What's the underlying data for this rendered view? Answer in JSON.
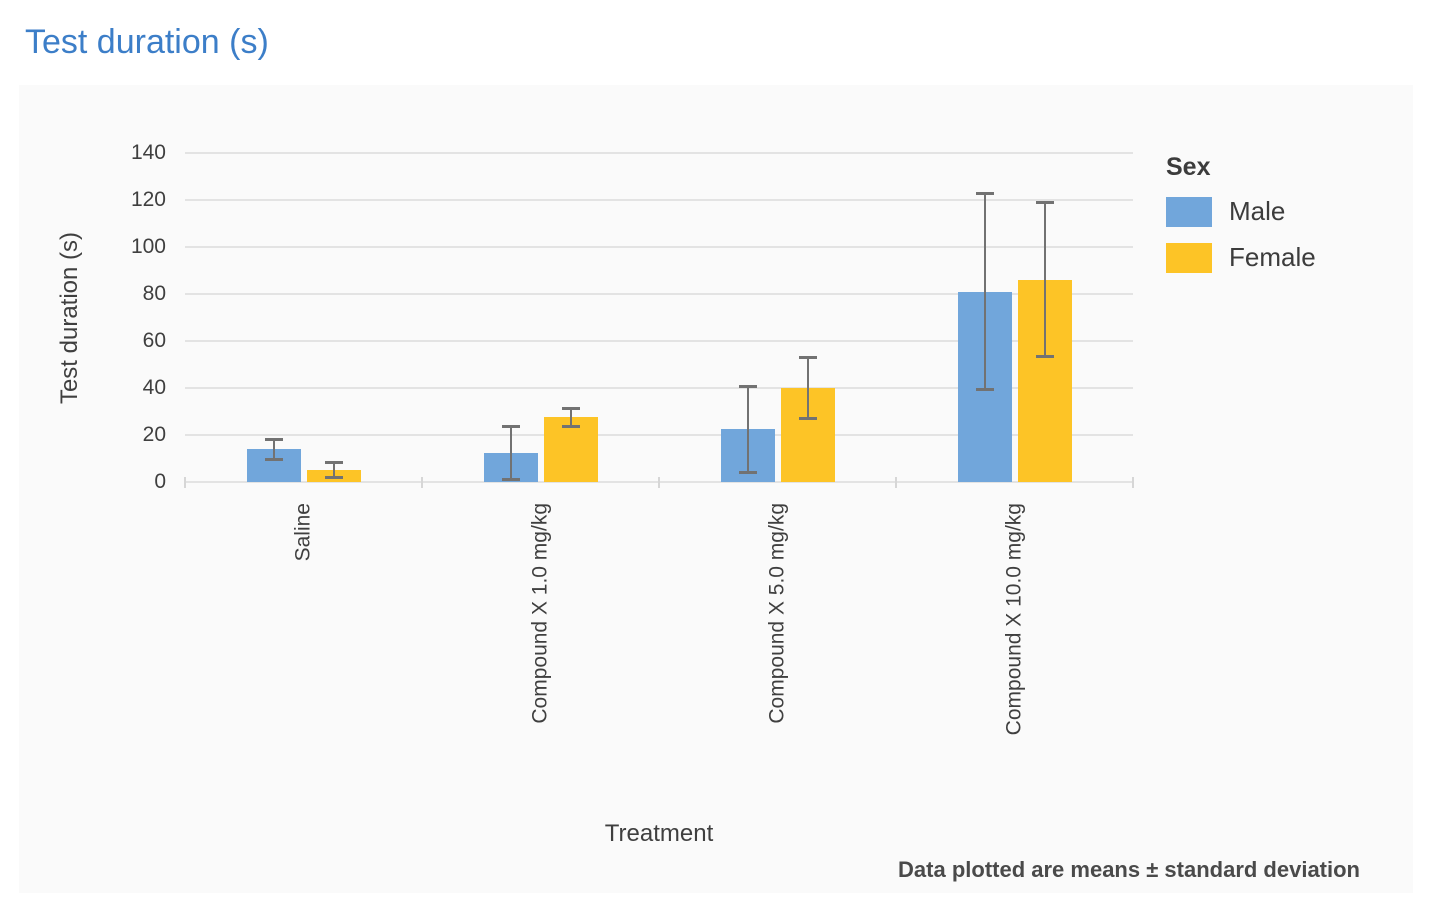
{
  "page": {
    "title": "Test duration (s)"
  },
  "chart_data": {
    "type": "bar",
    "title": "Test duration (s)",
    "xlabel": "Treatment",
    "ylabel": "Test duration (s)",
    "legend_title": "Sex",
    "legend_position": "right",
    "footnote": "Data plotted are means ± standard deviation",
    "categories": [
      "Saline",
      "Compound X 1.0 mg/kg",
      "Compound X 5.0 mg/kg",
      "Compound X 10.0 mg/kg"
    ],
    "series": [
      {
        "name": "Male",
        "color": "#71A6DB",
        "means": [
          14,
          12.5,
          22.5,
          81
        ],
        "sds": [
          4.5,
          11.5,
          18.5,
          42
        ]
      },
      {
        "name": "Female",
        "color": "#FDC426",
        "means": [
          5,
          27.5,
          40,
          86
        ],
        "sds": [
          3.5,
          4,
          13,
          33
        ]
      }
    ],
    "error_bars": "standard deviation",
    "ylim": [
      0,
      140
    ],
    "yticks": [
      0,
      20,
      40,
      60,
      80,
      100,
      120,
      140
    ],
    "grid": "horizontal"
  },
  "colors": {
    "title_text": "#3C7EC8",
    "panel_background": "#FAFAFA",
    "gridline": "#E3E3E3",
    "error_bar": "#727272",
    "axis_text": "#3F3F3F",
    "male": "#71A6DB",
    "female": "#FDC426"
  }
}
